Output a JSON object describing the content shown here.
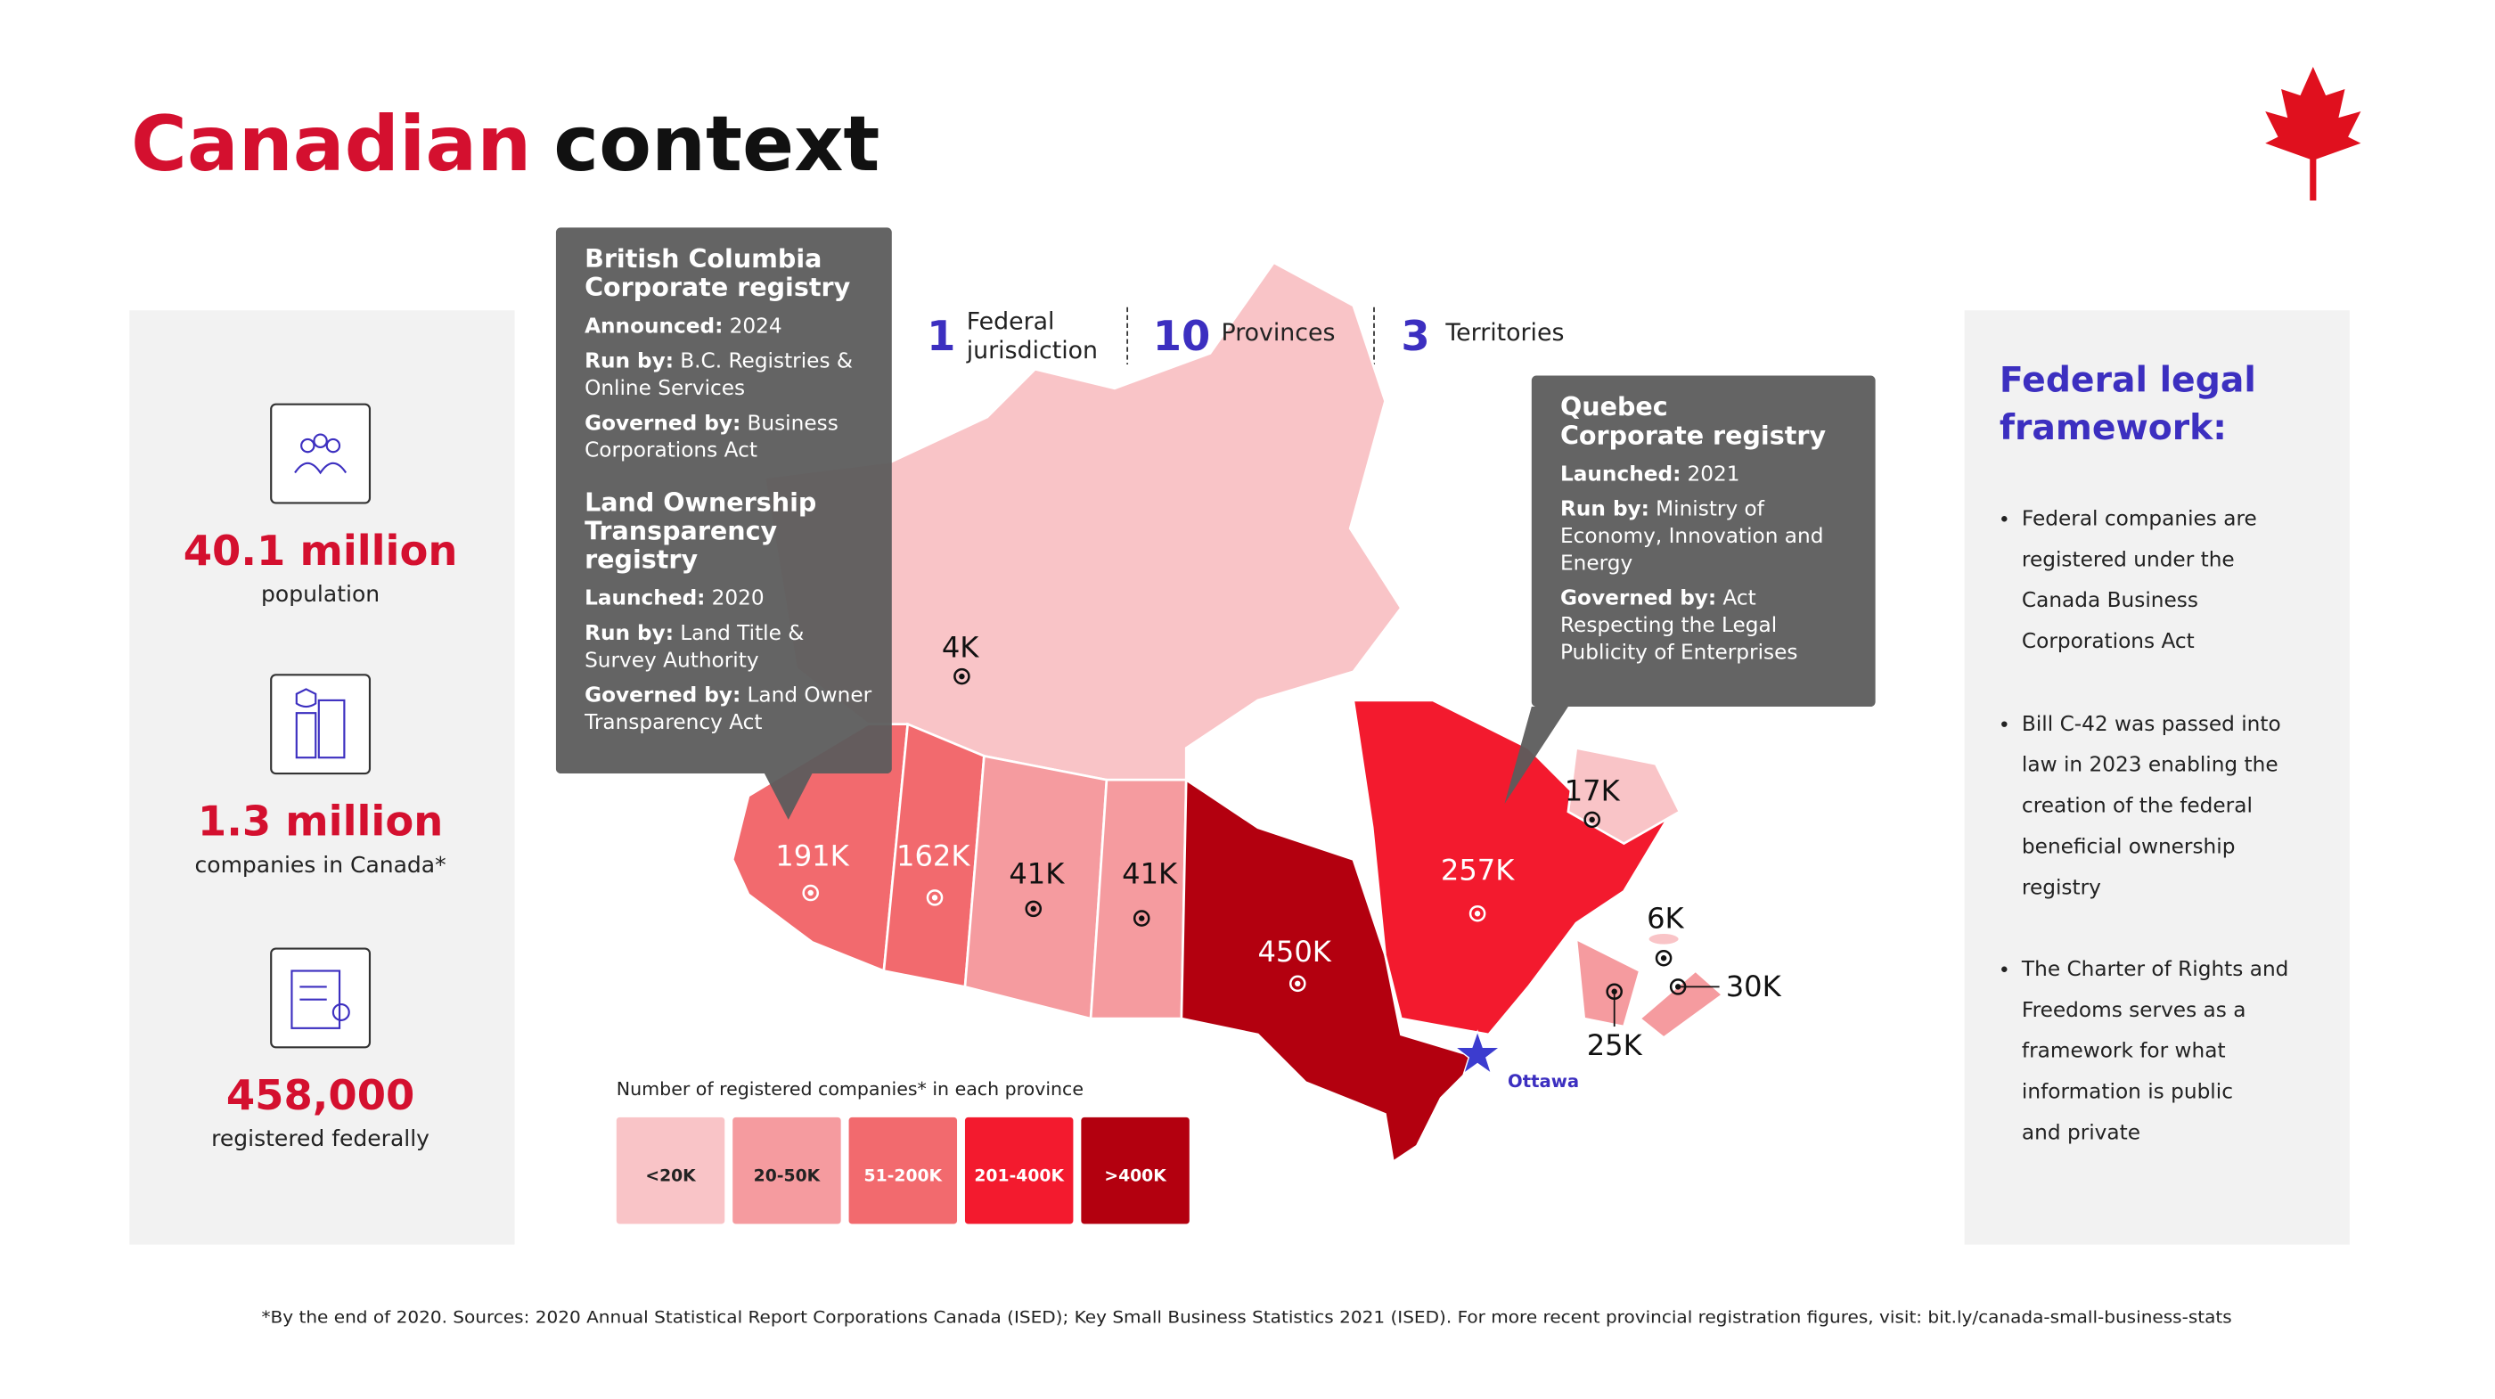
{
  "header": {
    "title_red": "Canadian",
    "title_black": "context"
  },
  "left_panel": {
    "stats": [
      {
        "value": "40.1 million",
        "label": "population"
      },
      {
        "value": "1.3 million",
        "label": "companies in Canada*"
      },
      {
        "value": "458,000",
        "label": "registered federally"
      }
    ]
  },
  "summary": [
    {
      "number": "1",
      "label": [
        "Federal",
        "jurisdiction"
      ]
    },
    {
      "number": "10",
      "label": [
        "Provinces"
      ]
    },
    {
      "number": "3",
      "label": [
        "Territories"
      ]
    }
  ],
  "callouts": [
    {
      "sections": [
        {
          "title": [
            "British Columbia",
            "Corporate registry"
          ],
          "items": [
            {
              "key": "Announced:",
              "value": [
                "2024"
              ]
            },
            {
              "key": "Run by:",
              "value": [
                "B.C. Registries &",
                "Online Services"
              ]
            },
            {
              "key": "Governed by:",
              "value": [
                "Business",
                "Corporations Act"
              ]
            }
          ]
        },
        {
          "title": [
            "Land Ownership",
            "Transparency",
            "registry"
          ],
          "items": [
            {
              "key": "Launched:",
              "value": [
                "2020"
              ]
            },
            {
              "key": "Run by:",
              "value": [
                "Land Title &",
                "Survey Authority"
              ]
            },
            {
              "key": "Governed by:",
              "value": [
                "Land Owner",
                "Transparency Act"
              ]
            }
          ]
        }
      ]
    },
    {
      "sections": [
        {
          "title": [
            "Quebec",
            "Corporate registry"
          ],
          "items": [
            {
              "key": "Launched:",
              "value": [
                "2021"
              ]
            },
            {
              "key": "Run by:",
              "value": [
                "Ministry of",
                "Economy, Innovation and",
                "Energy"
              ]
            },
            {
              "key": "Governed by:",
              "value": [
                "Act",
                "Respecting the Legal",
                "Publicity of Enterprises"
              ]
            }
          ]
        }
      ]
    }
  ],
  "map": {
    "regions": [
      {
        "label": "4K",
        "color": "#f9c4c7"
      },
      {
        "label": "191K",
        "color": "#f26a6e"
      },
      {
        "label": "162K",
        "color": "#f26a6e"
      },
      {
        "label": "41K",
        "color": "#f59b9f"
      },
      {
        "label": "41K",
        "color": "#f59b9f"
      },
      {
        "label": "450K",
        "color": "#b3000f"
      },
      {
        "label": "257K",
        "color": "#f31a2e"
      },
      {
        "label": "17K",
        "color": "#f9c4c7"
      },
      {
        "label": "6K",
        "color": "#f9c4c7"
      },
      {
        "label": "30K",
        "color": "#f59b9f"
      },
      {
        "label": "25K",
        "color": "#f59b9f"
      }
    ],
    "capital": "Ottawa"
  },
  "legend": {
    "caption": "Number of registered companies* in each province",
    "items": [
      {
        "label": "<20K",
        "color": "#f9c4c7"
      },
      {
        "label": "20-50K",
        "color": "#f59b9f"
      },
      {
        "label": "51-200K",
        "color": "#f26a6e"
      },
      {
        "label": "201-400K",
        "color": "#f31a2e"
      },
      {
        "label": ">400K",
        "color": "#b3000f"
      }
    ]
  },
  "right_panel": {
    "title": [
      "Federal legal",
      "framework:"
    ],
    "bullets": [
      [
        "Federal companies are",
        "registered under the",
        "Canada Business",
        "Corporations Act"
      ],
      [
        "Bill C-42 was passed into",
        "law in 2023 enabling the",
        "creation of the federal",
        "beneficial ownership",
        "registry"
      ],
      [
        "The Charter of Rights and",
        "Freedoms serves as a",
        "framework for what",
        "information is public",
        "and private"
      ]
    ]
  },
  "footnote": "*By the end of 2020. Sources: 2020 Annual Statistical Report Corporations Canada (ISED); Key Small Business Statistics 2021 (ISED). For more recent provincial registration figures, visit: bit.ly/canada-small-business-stats"
}
